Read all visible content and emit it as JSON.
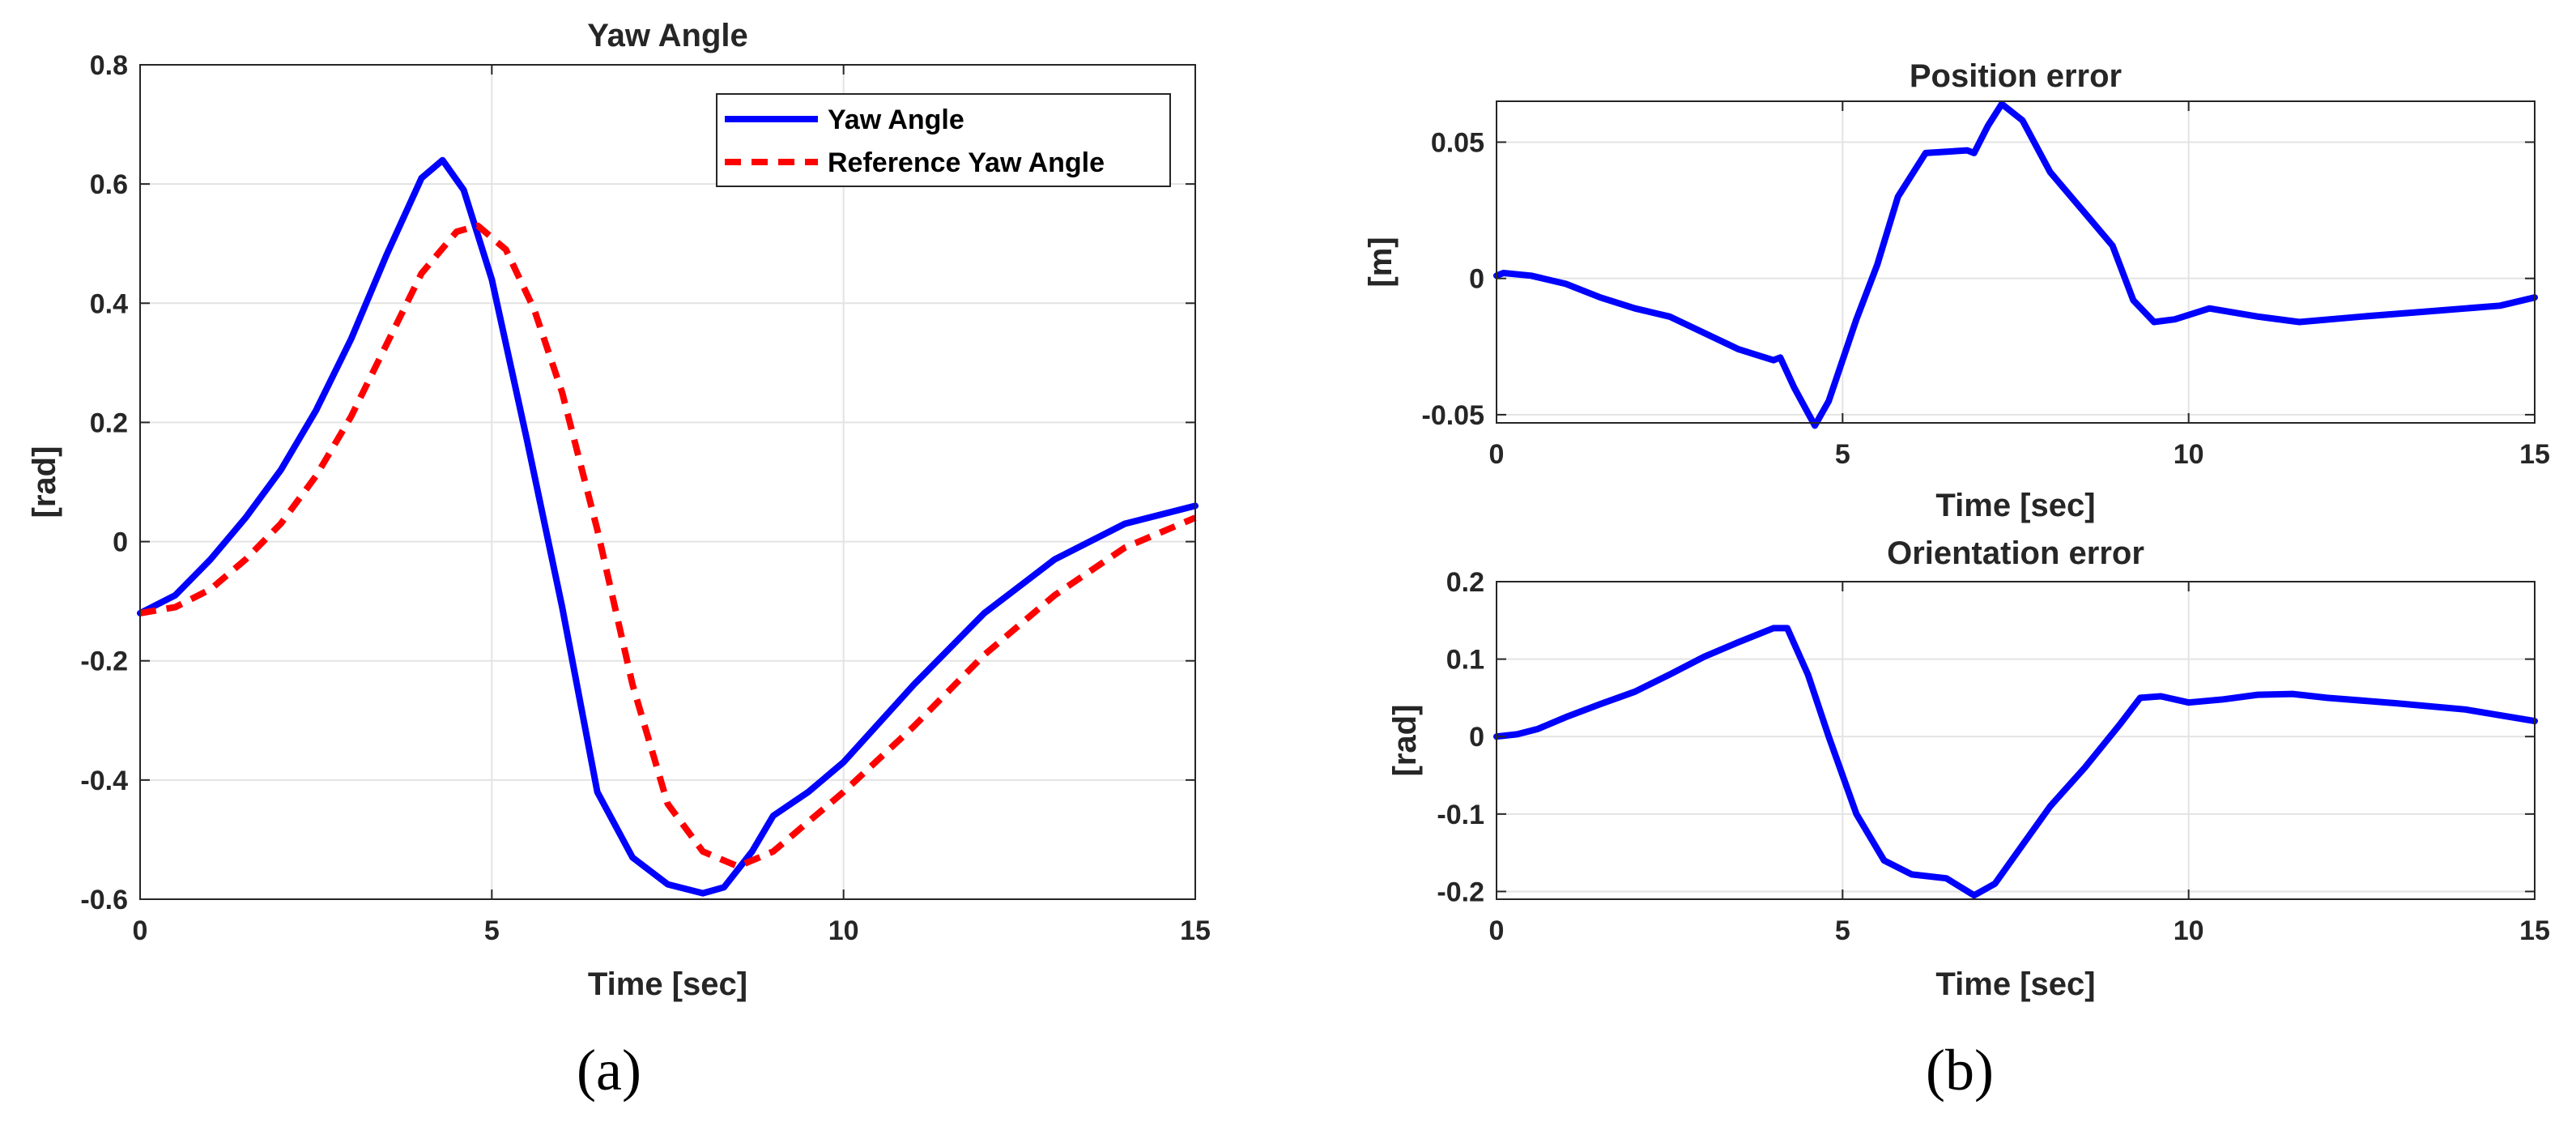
{
  "captions": {
    "a": "(a)",
    "b": "(b)"
  },
  "colors": {
    "series_blue": "#0000ff",
    "series_red": "#ff0000",
    "grid": "#e3e3e3",
    "axis": "#262626"
  },
  "chart_data": [
    {
      "id": "yaw",
      "type": "line",
      "title": "Yaw Angle",
      "xlabel": "Time [sec]",
      "ylabel": "[rad]",
      "xlim": [
        0,
        15
      ],
      "ylim": [
        -0.6,
        0.8
      ],
      "xticks": [
        0,
        5,
        10,
        15
      ],
      "xtick_labels": [
        "0",
        "5",
        "10",
        "15"
      ],
      "yticks": [
        -0.6,
        -0.4,
        -0.2,
        0,
        0.2,
        0.4,
        0.6,
        0.8
      ],
      "ytick_labels": [
        "-0.6",
        "-0.4",
        "-0.2",
        "0",
        "0.2",
        "0.4",
        "0.6",
        "0.8"
      ],
      "grid": true,
      "legend_position": "top-right",
      "series": [
        {
          "name": "Yaw Angle",
          "color": "#0000ff",
          "style": "solid",
          "x": [
            0,
            0.5,
            1,
            1.5,
            2,
            2.5,
            3,
            3.5,
            4,
            4.3,
            4.6,
            5,
            5.5,
            6,
            6.5,
            7,
            7.5,
            8,
            8.3,
            8.7,
            9,
            9.5,
            10,
            11,
            12,
            13,
            14,
            15
          ],
          "y": [
            -0.12,
            -0.09,
            -0.03,
            0.04,
            0.12,
            0.22,
            0.34,
            0.48,
            0.61,
            0.64,
            0.59,
            0.44,
            0.17,
            -0.11,
            -0.42,
            -0.53,
            -0.575,
            -0.59,
            -0.58,
            -0.52,
            -0.46,
            -0.42,
            -0.37,
            -0.24,
            -0.12,
            -0.03,
            0.03,
            0.06
          ]
        },
        {
          "name": "Reference Yaw Angle",
          "color": "#ff0000",
          "style": "dashed",
          "x": [
            0,
            0.5,
            1,
            1.5,
            2,
            2.5,
            3,
            3.5,
            4,
            4.5,
            4.8,
            5.2,
            5.6,
            6,
            6.5,
            7,
            7.5,
            8,
            8.5,
            9,
            9.5,
            10,
            11,
            12,
            13,
            14,
            15
          ],
          "y": [
            -0.12,
            -0.11,
            -0.08,
            -0.03,
            0.03,
            0.11,
            0.21,
            0.33,
            0.45,
            0.52,
            0.53,
            0.49,
            0.39,
            0.25,
            0.02,
            -0.24,
            -0.44,
            -0.52,
            -0.545,
            -0.52,
            -0.47,
            -0.42,
            -0.31,
            -0.19,
            -0.09,
            -0.01,
            0.04
          ]
        }
      ]
    },
    {
      "id": "pos",
      "type": "line",
      "title": "Position error",
      "xlabel": "Time [sec]",
      "ylabel": "[m]",
      "xlim": [
        0,
        15
      ],
      "ylim": [
        -0.053,
        0.065
      ],
      "xticks": [
        0,
        5,
        10,
        15
      ],
      "xtick_labels": [
        "0",
        "5",
        "10",
        "15"
      ],
      "yticks": [
        -0.05,
        0,
        0.05
      ],
      "ytick_labels": [
        "-0.05",
        "0",
        "0.05"
      ],
      "grid": true,
      "series": [
        {
          "name": "Position error",
          "color": "#0000ff",
          "style": "solid",
          "x": [
            0,
            0.1,
            0.5,
            1,
            1.5,
            2,
            2.5,
            3,
            3.5,
            4,
            4.1,
            4.3,
            4.6,
            4.8,
            5.2,
            5.5,
            5.8,
            6.2,
            6.8,
            6.9,
            7.1,
            7.3,
            7.6,
            8,
            8.5,
            8.9,
            9.2,
            9.5,
            9.8,
            10.3,
            11,
            11.6,
            12.5,
            13.5,
            14.5,
            15
          ],
          "y": [
            0.001,
            0.002,
            0.001,
            -0.002,
            -0.007,
            -0.011,
            -0.014,
            -0.02,
            -0.026,
            -0.03,
            -0.029,
            -0.04,
            -0.054,
            -0.045,
            -0.015,
            0.005,
            0.03,
            0.046,
            0.047,
            0.046,
            0.056,
            0.064,
            0.058,
            0.039,
            0.024,
            0.012,
            -0.008,
            -0.016,
            -0.015,
            -0.011,
            -0.014,
            -0.016,
            -0.014,
            -0.012,
            -0.01,
            -0.007
          ]
        }
      ]
    },
    {
      "id": "ori",
      "type": "line",
      "title": "Orientation error",
      "xlabel": "Time [sec]",
      "ylabel": "[rad]",
      "xlim": [
        0,
        15
      ],
      "ylim": [
        -0.21,
        0.2
      ],
      "xticks": [
        0,
        5,
        10,
        15
      ],
      "xtick_labels": [
        "0",
        "5",
        "10",
        "15"
      ],
      "yticks": [
        -0.2,
        -0.1,
        0,
        0.1,
        0.2
      ],
      "ytick_labels": [
        "-0.2",
        "-0.1",
        "0",
        "0.1",
        "0.2"
      ],
      "grid": true,
      "series": [
        {
          "name": "Orientation error",
          "color": "#0000ff",
          "style": "solid",
          "x": [
            0,
            0.3,
            0.6,
            1,
            1.5,
            2,
            2.5,
            3,
            3.5,
            4,
            4.2,
            4.5,
            4.8,
            5.2,
            5.6,
            6,
            6.5,
            6.9,
            7.2,
            7.6,
            8,
            8.5,
            9,
            9.3,
            9.6,
            10,
            10.5,
            11,
            11.5,
            12,
            13,
            14,
            15
          ],
          "y": [
            0,
            0.003,
            0.01,
            0.025,
            0.042,
            0.058,
            0.08,
            0.103,
            0.122,
            0.14,
            0.14,
            0.08,
            0.0,
            -0.1,
            -0.16,
            -0.178,
            -0.183,
            -0.205,
            -0.19,
            -0.14,
            -0.09,
            -0.04,
            0.015,
            0.05,
            0.052,
            0.044,
            0.048,
            0.054,
            0.055,
            0.05,
            0.043,
            0.035,
            0.02
          ]
        }
      ]
    }
  ]
}
